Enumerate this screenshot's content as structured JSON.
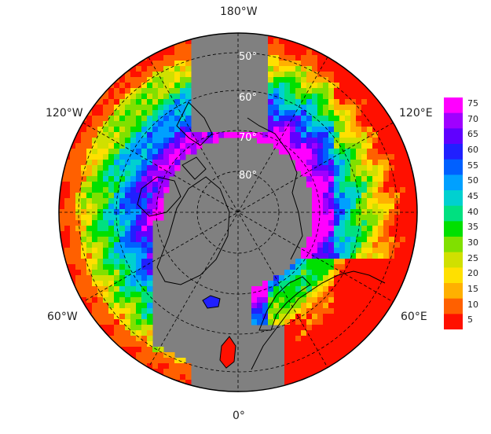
{
  "map": {
    "projection": "north-polar-stereographic",
    "longitude_labels": {
      "top": "180°W",
      "bottom": "0°",
      "upper_left": "120°W",
      "upper_right": "120°E",
      "lower_left": "60°W",
      "lower_right": "60°E"
    },
    "latitude_labels": [
      "50°",
      "60°",
      "70°",
      "80°"
    ],
    "ocean_color": "#808080",
    "missing_color": "#808080"
  },
  "colorbar": {
    "ticks": [
      "75",
      "70",
      "65",
      "60",
      "55",
      "50",
      "45",
      "40",
      "35",
      "30",
      "25",
      "20",
      "15",
      "10",
      "5"
    ],
    "colors": [
      "#ff00ff",
      "#a000ff",
      "#6000ff",
      "#2020ff",
      "#0060ff",
      "#00a0ff",
      "#00d0d0",
      "#00e080",
      "#00e000",
      "#80e000",
      "#d0e000",
      "#ffe000",
      "#ffb000",
      "#ff6000",
      "#ff1000"
    ]
  }
}
